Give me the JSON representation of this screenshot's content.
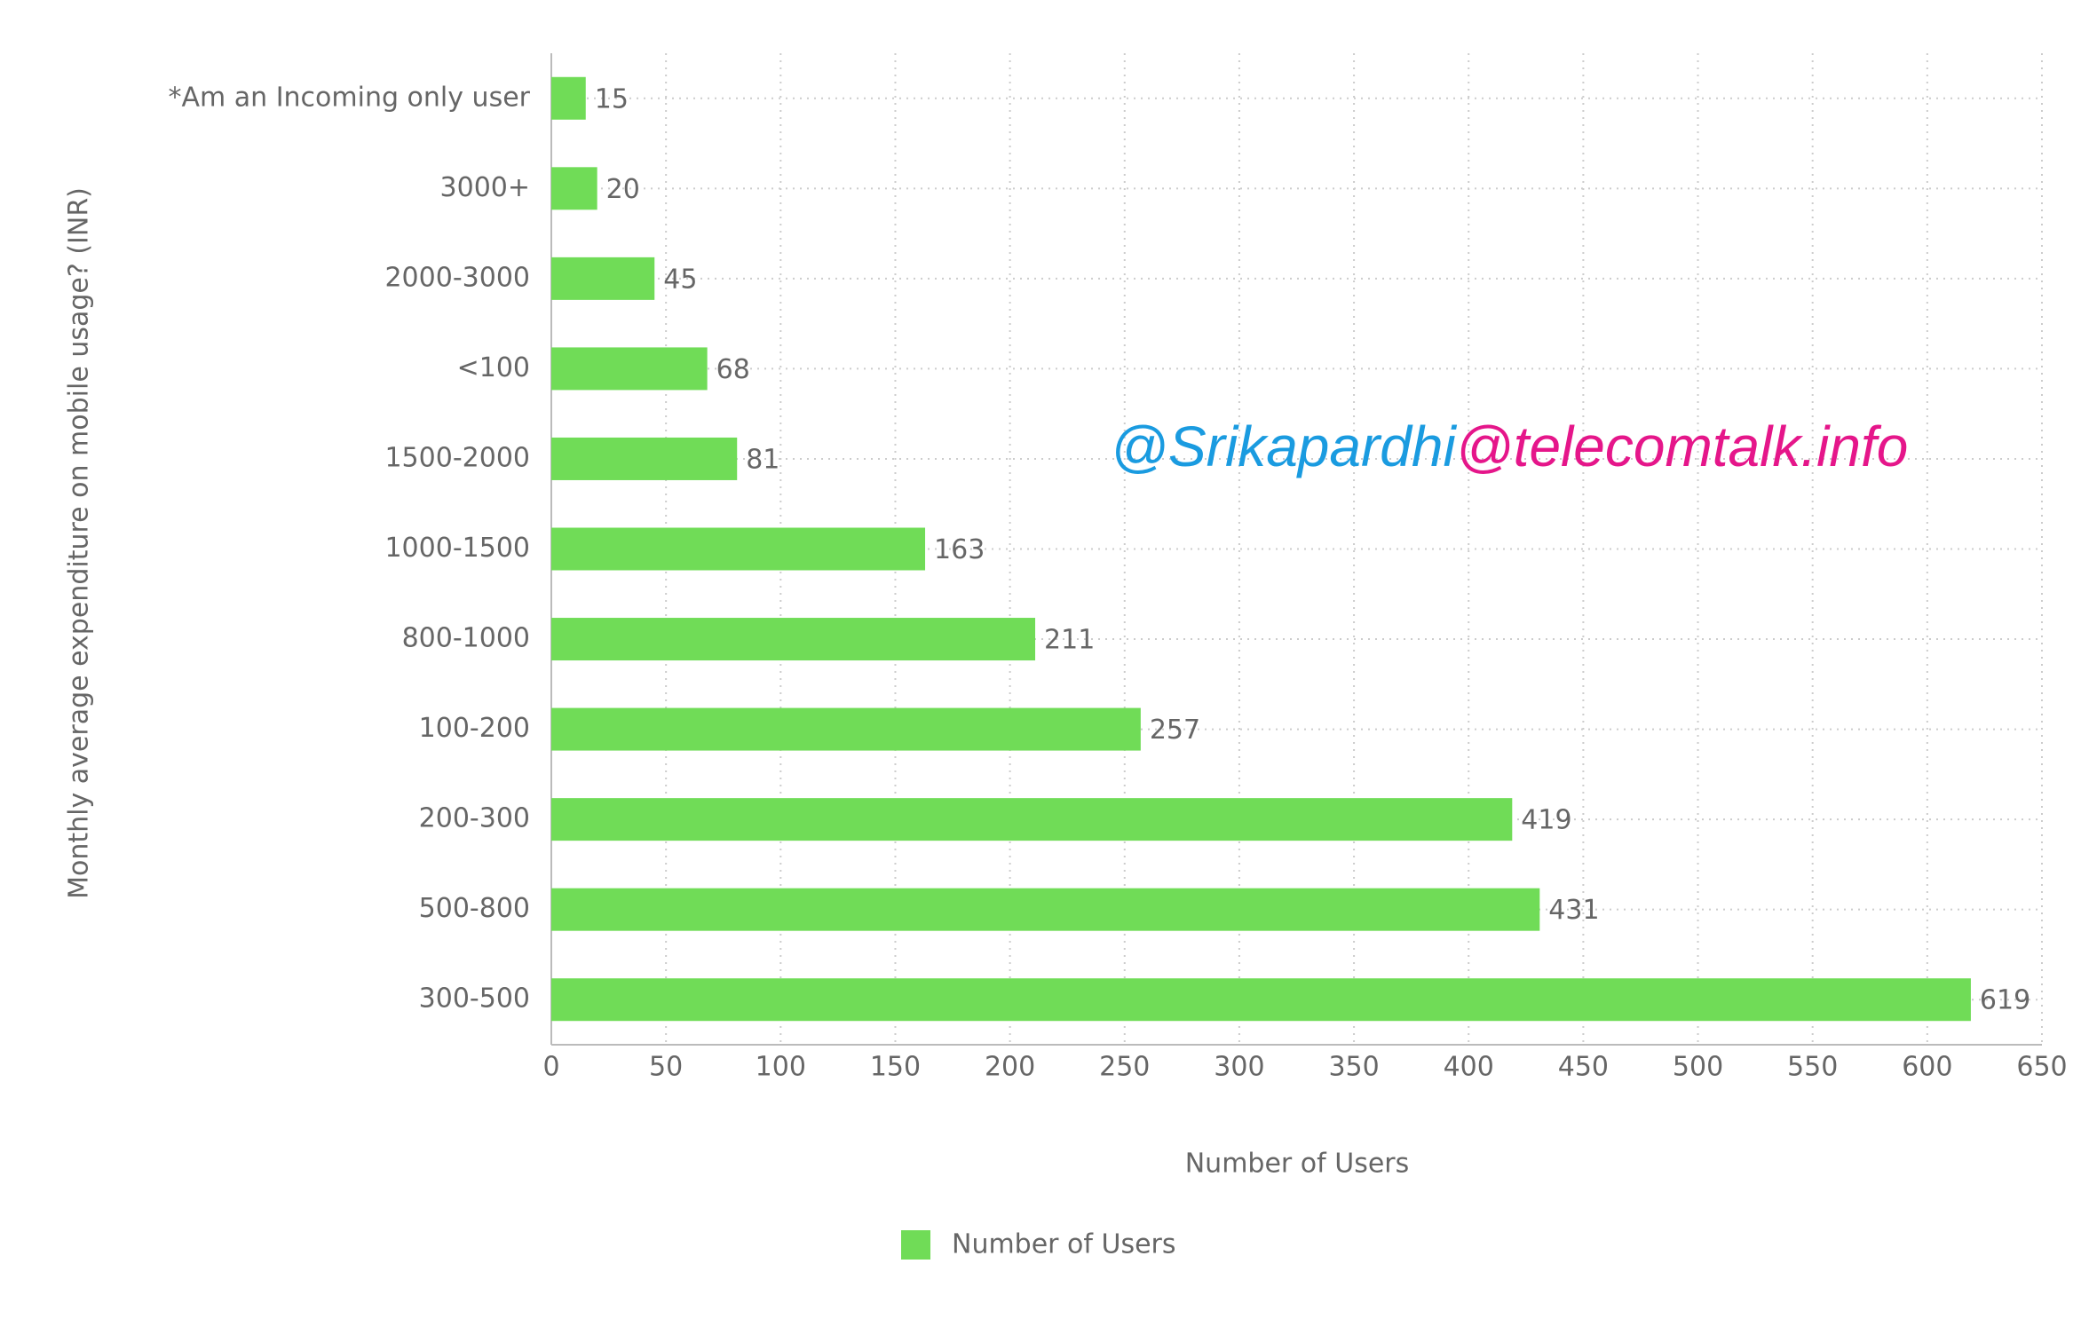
{
  "chart_data": {
    "type": "bar",
    "orientation": "horizontal",
    "categories": [
      "*Am an Incoming only user",
      "3000+",
      "2000-3000",
      "<100",
      "1500-2000",
      "1000-1500",
      "800-1000",
      "100-200",
      "200-300",
      "500-800",
      "300-500"
    ],
    "series": [
      {
        "name": "Number of Users",
        "color": "#70dc57",
        "values": [
          15,
          20,
          45,
          68,
          81,
          163,
          211,
          257,
          419,
          431,
          619
        ]
      }
    ],
    "xlabel": "Number of Users",
    "ylabel": "Monthly average expenditure on mobile usage? (INR)",
    "xlim": [
      0,
      650
    ],
    "xticks": [
      0,
      50,
      100,
      150,
      200,
      250,
      300,
      350,
      400,
      450,
      500,
      550,
      600,
      650
    ],
    "grid": true,
    "legend": "bottom",
    "annotations": [
      {
        "text": "@Srikapardhi",
        "color": "#1a9be0"
      },
      {
        "text": "@telecomtalk.info",
        "color": "#e5168a"
      }
    ]
  }
}
